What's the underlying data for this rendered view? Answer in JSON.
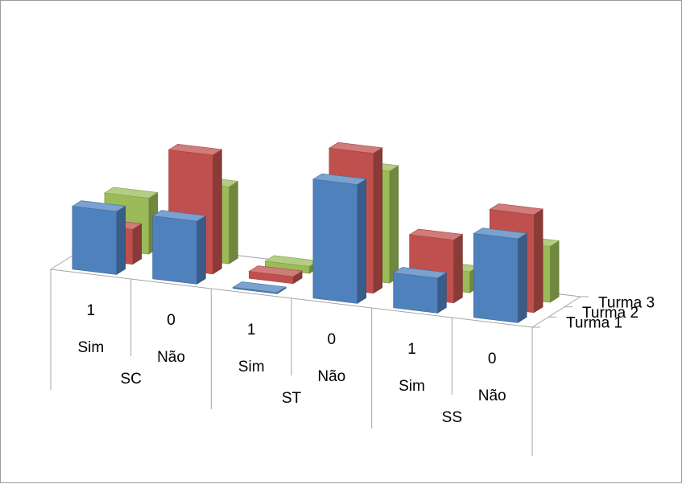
{
  "chart_data": {
    "type": "bar",
    "style": "3d-clustered-column",
    "categories": [
      {
        "code": "1",
        "answer": "Sim",
        "group": "SC"
      },
      {
        "code": "0",
        "answer": "Não",
        "group": "SC"
      },
      {
        "code": "1",
        "answer": "Sim",
        "group": "ST"
      },
      {
        "code": "0",
        "answer": "Não",
        "group": "ST"
      },
      {
        "code": "1",
        "answer": "Sim",
        "group": "SS"
      },
      {
        "code": "0",
        "answer": "Não",
        "group": "SS"
      }
    ],
    "groups": [
      "SC",
      "ST",
      "SS"
    ],
    "series": [
      {
        "name": "Turma 1",
        "color": "#4f81bd",
        "values": [
          9,
          9,
          0,
          17,
          5,
          12
        ]
      },
      {
        "name": "Turma 2",
        "color": "#c0504d",
        "values": [
          5,
          17,
          1,
          20,
          9,
          14
        ]
      },
      {
        "name": "Turma 3",
        "color": "#9bbb59",
        "values": [
          8,
          11,
          1,
          16,
          3,
          8
        ]
      }
    ],
    "title": "",
    "xlabel": "",
    "ylabel": "",
    "grid": false,
    "legend": "none"
  }
}
